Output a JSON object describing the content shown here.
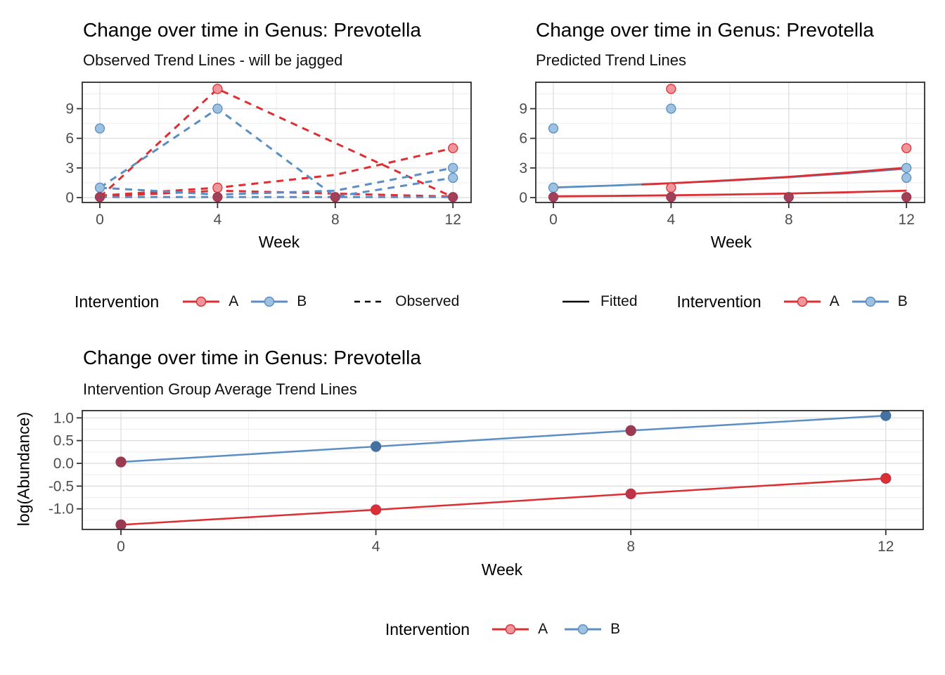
{
  "colors": {
    "red": "#DC2F34",
    "blue": "#5B8EC4",
    "redFill": "#F0959B",
    "blueFill": "#9DC1DF",
    "dark": "#993A52",
    "darkFill": "#A34059",
    "blueDark": "#44719F",
    "red8": "#BE3347",
    "black": "#000000",
    "grid": "#DBDBDB",
    "gridMinor": "#EFEFEF",
    "axisText": "#4D4D4D",
    "border": "#2E2E2E",
    "tick": "#333333"
  },
  "chart_data": [
    {
      "type": "line",
      "title": "Change over time in Genus: Prevotella",
      "subtitle": "Observed Trend Lines - will be jagged",
      "xlabel": "Week",
      "ylabel": "",
      "xticks": [
        0,
        4,
        8,
        12
      ],
      "xtick_labels": [
        "0",
        "4",
        "8",
        "12"
      ],
      "xminor": [
        2,
        6,
        10
      ],
      "yticks": [
        0,
        3,
        6,
        9
      ],
      "ytick_labels": [
        "0",
        "3",
        "6",
        "9"
      ],
      "yminor": [
        1.5,
        4.5,
        7.5,
        10.5
      ],
      "xlim": [
        -0.6,
        12.62
      ],
      "ylim": [
        -0.57,
        11.57
      ],
      "grid": true,
      "legend_position": "bottom",
      "series": [
        {
          "name": "A-subject-1",
          "color": "red",
          "dash": true,
          "points": [
            [
              0,
              0.05
            ],
            [
              4,
              11
            ],
            [
              12,
              0.05
            ]
          ]
        },
        {
          "name": "A-subject-2",
          "color": "red",
          "dash": true,
          "points": [
            [
              0,
              0.2
            ],
            [
              4,
              1
            ],
            [
              8,
              2.3
            ],
            [
              12,
              5
            ]
          ]
        },
        {
          "name": "A-subject-3",
          "color": "red",
          "dash": true,
          "points": [
            [
              0,
              0.1
            ],
            [
              4,
              0.7
            ],
            [
              8,
              0.4
            ],
            [
              12,
              0.1
            ]
          ]
        },
        {
          "name": "B-subject-1",
          "color": "blue",
          "dash": true,
          "points": [
            [
              0,
              1
            ],
            [
              4,
              9
            ],
            [
              8,
              0.1
            ],
            [
              12,
              2
            ]
          ]
        },
        {
          "name": "B-subject-2",
          "color": "blue",
          "dash": true,
          "points": [
            [
              0,
              1
            ],
            [
              4,
              0.3
            ],
            [
              8,
              0.7
            ],
            [
              12,
              3
            ]
          ]
        },
        {
          "name": "B-subject-3",
          "color": "blue",
          "dash": true,
          "points": [
            [
              0,
              0.05
            ],
            [
              4,
              0.05
            ],
            [
              8,
              0.05
            ],
            [
              12,
              0.05
            ]
          ]
        }
      ],
      "markers": [
        {
          "x": 0,
          "y": 7,
          "f": "blueFill",
          "s": "blue"
        },
        {
          "x": 0,
          "y": 1,
          "f": "blueFill",
          "s": "blue"
        },
        {
          "x": 0,
          "y": 0.05,
          "f": "darkFill",
          "s": "dark"
        },
        {
          "x": 4,
          "y": 11,
          "f": "redFill",
          "s": "red"
        },
        {
          "x": 4,
          "y": 9,
          "f": "blueFill",
          "s": "blue"
        },
        {
          "x": 4,
          "y": 1,
          "f": "redFill",
          "s": "red"
        },
        {
          "x": 4,
          "y": 0.05,
          "f": "darkFill",
          "s": "dark"
        },
        {
          "x": 8,
          "y": 0.05,
          "f": "darkFill",
          "s": "dark"
        },
        {
          "x": 12,
          "y": 5,
          "f": "redFill",
          "s": "red"
        },
        {
          "x": 12,
          "y": 3,
          "f": "blueFill",
          "s": "blue"
        },
        {
          "x": 12,
          "y": 2,
          "f": "blueFill",
          "s": "blue"
        },
        {
          "x": 12,
          "y": 0.05,
          "f": "darkFill",
          "s": "dark"
        }
      ],
      "legend": {
        "title": "Intervention",
        "a_label": "A",
        "b_label": "B",
        "linetype_label": "Observed"
      }
    },
    {
      "type": "line",
      "title": "Change over time in Genus: Prevotella",
      "subtitle": "Predicted Trend Lines",
      "xlabel": "Week",
      "ylabel": "",
      "xticks": [
        0,
        4,
        8,
        12
      ],
      "xtick_labels": [
        "0",
        "4",
        "8",
        "12"
      ],
      "xminor": [
        2,
        6,
        10
      ],
      "yticks": [
        0,
        3,
        6,
        9
      ],
      "ytick_labels": [
        "0",
        "3",
        "6",
        "9"
      ],
      "yminor": [
        1.5,
        4.5,
        7.5,
        10.5
      ],
      "xlim": [
        -0.6,
        12.62
      ],
      "ylim": [
        -0.57,
        11.57
      ],
      "grid": true,
      "legend_position": "bottom",
      "series": [
        {
          "name": "B-fitted",
          "color": "blue",
          "dash": false,
          "points": [
            [
              0,
              1.02
            ],
            [
              2,
              1.22
            ],
            [
              4,
              1.45
            ],
            [
              6,
              1.73
            ],
            [
              8,
              2.06
            ],
            [
              10,
              2.46
            ],
            [
              12,
              2.93
            ]
          ]
        },
        {
          "name": "A-fitted-2",
          "color": "red",
          "dash": false,
          "points": [
            [
              3,
              1.32
            ],
            [
              4,
              1.45
            ],
            [
              6,
              1.76
            ],
            [
              8,
              2.1
            ],
            [
              10,
              2.53
            ],
            [
              12,
              3.03
            ]
          ]
        },
        {
          "name": "A-fitted-1",
          "color": "red",
          "dash": false,
          "points": [
            [
              0,
              0.13
            ],
            [
              2,
              0.17
            ],
            [
              4,
              0.23
            ],
            [
              6,
              0.31
            ],
            [
              8,
              0.41
            ],
            [
              10,
              0.54
            ],
            [
              12,
              0.7
            ]
          ]
        }
      ],
      "markers": [
        {
          "x": 0,
          "y": 7,
          "f": "blueFill",
          "s": "blue"
        },
        {
          "x": 0,
          "y": 1,
          "f": "blueFill",
          "s": "blue"
        },
        {
          "x": 0,
          "y": 0.05,
          "f": "darkFill",
          "s": "dark"
        },
        {
          "x": 4,
          "y": 11,
          "f": "redFill",
          "s": "red"
        },
        {
          "x": 4,
          "y": 9,
          "f": "blueFill",
          "s": "blue"
        },
        {
          "x": 4,
          "y": 1,
          "f": "redFill",
          "s": "red"
        },
        {
          "x": 4,
          "y": 0.05,
          "f": "darkFill",
          "s": "dark"
        },
        {
          "x": 8,
          "y": 0.05,
          "f": "darkFill",
          "s": "dark"
        },
        {
          "x": 12,
          "y": 5,
          "f": "redFill",
          "s": "red"
        },
        {
          "x": 12,
          "y": 3,
          "f": "blueFill",
          "s": "blue"
        },
        {
          "x": 12,
          "y": 2,
          "f": "blueFill",
          "s": "blue"
        },
        {
          "x": 12,
          "y": 0.05,
          "f": "darkFill",
          "s": "dark"
        }
      ],
      "legend": {
        "title": "Intervention",
        "a_label": "A",
        "b_label": "B",
        "linetype_label": "Fitted"
      }
    },
    {
      "type": "line",
      "title": "Change over time in Genus: Prevotella",
      "subtitle": "Intervention Group Average Trend Lines",
      "xlabel": "Week",
      "ylabel": "log(Abundance)",
      "xticks": [
        0,
        4,
        8,
        12
      ],
      "xtick_labels": [
        "0",
        "4",
        "8",
        "12"
      ],
      "xminor": [
        2,
        6,
        10
      ],
      "yticks": [
        1.0,
        0.5,
        0.0,
        -0.5,
        -1.0
      ],
      "ytick_labels": [
        "1.0",
        "0.5",
        "0.0",
        "-0.5",
        "-1.0"
      ],
      "yminor": [
        0.75,
        0.25,
        -0.25,
        -0.75,
        -1.25
      ],
      "xlim": [
        -0.61,
        12.58
      ],
      "ylim": [
        -1.45,
        1.16
      ],
      "grid": true,
      "legend_position": "bottom",
      "series": [
        {
          "name": "B-average",
          "color": "blue",
          "dash": false,
          "points": [
            [
              0,
              0.03
            ],
            [
              4,
              0.37
            ],
            [
              8,
              0.72
            ],
            [
              12,
              1.05
            ]
          ]
        },
        {
          "name": "A-average",
          "color": "red",
          "dash": false,
          "points": [
            [
              0,
              -1.35
            ],
            [
              4,
              -1.02
            ],
            [
              8,
              -0.67
            ],
            [
              12,
              -0.33
            ]
          ]
        }
      ],
      "markers": [
        {
          "x": 0,
          "y": 0.03,
          "f": "dark",
          "s": "dark"
        },
        {
          "x": 4,
          "y": 0.37,
          "f": "blueDark",
          "s": "blueDark"
        },
        {
          "x": 8,
          "y": 0.72,
          "f": "dark",
          "s": "dark"
        },
        {
          "x": 12,
          "y": 1.05,
          "f": "blueDark",
          "s": "blueDark"
        },
        {
          "x": 0,
          "y": -1.35,
          "f": "dark",
          "s": "dark"
        },
        {
          "x": 4,
          "y": -1.02,
          "f": "red",
          "s": "red8"
        },
        {
          "x": 8,
          "y": -0.67,
          "f": "red8",
          "s": "red8"
        },
        {
          "x": 12,
          "y": -0.33,
          "f": "red",
          "s": "red8"
        }
      ],
      "legend": {
        "title": "Intervention",
        "a_label": "A",
        "b_label": "B"
      }
    }
  ]
}
